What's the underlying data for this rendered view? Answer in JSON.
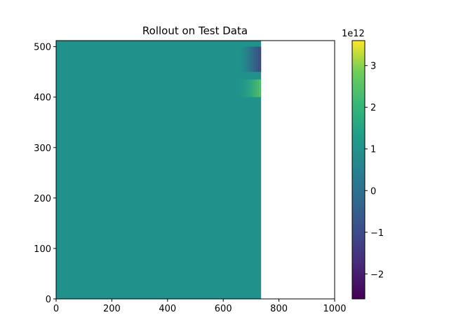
{
  "chart_data": {
    "type": "heatmap",
    "title": "Rollout on Test Data",
    "xlim": [
      0,
      1000
    ],
    "ylim": [
      0,
      512
    ],
    "data_extent": {
      "x": [
        0,
        736
      ],
      "y": [
        0,
        512
      ]
    },
    "x_ticks": [
      0,
      200,
      400,
      600,
      800,
      1000
    ],
    "y_ticks": [
      0,
      100,
      200,
      300,
      400,
      500
    ],
    "colormap": "viridis",
    "background_value": 0,
    "features": [
      {
        "description": "oscillating band near right edge of data",
        "x_range": [
          640,
          736
        ],
        "y_range": [
          400,
          435
        ],
        "peak_value": 1600000000000.0
      },
      {
        "description": "negative-valued band near right edge of data",
        "x_range": [
          660,
          736
        ],
        "y_range": [
          450,
          500
        ],
        "peak_value": -1000000000000.0
      }
    ],
    "colorbar": {
      "min": -2600000000000.0,
      "max": 3600000000000.0,
      "ticks": [
        "−2",
        "−1",
        "0",
        "1",
        "2",
        "3"
      ],
      "tick_values": [
        -2,
        -1,
        0,
        1,
        2,
        3
      ],
      "scale_label": "1e12"
    },
    "grid": false,
    "legend": "none"
  }
}
